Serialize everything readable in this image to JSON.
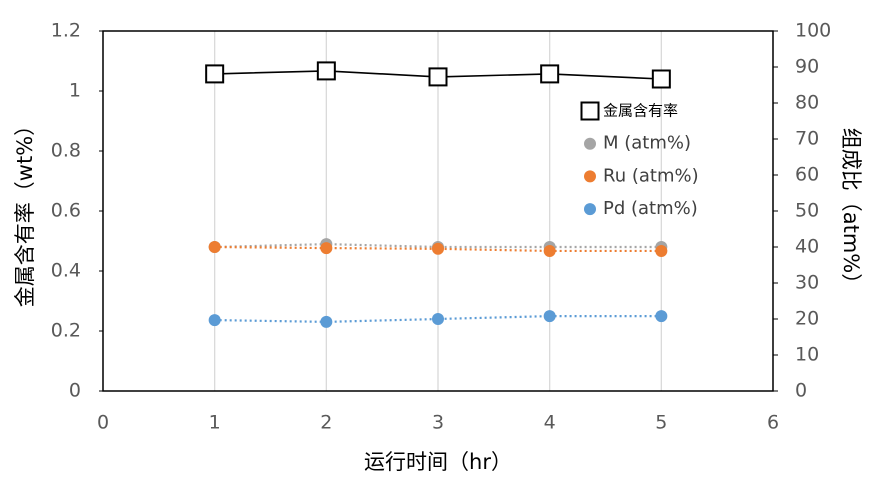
{
  "chart_data": {
    "type": "line",
    "x_label": "运行时间（hr）",
    "y_label": "金属含有率（wt%）",
    "y2_label": "组成比（atm%）",
    "x": [
      1,
      2,
      3,
      4,
      5
    ],
    "xlim": [
      0,
      6
    ],
    "xticks": [
      0,
      1,
      2,
      3,
      4,
      5,
      6
    ],
    "ylim": [
      0,
      1.2
    ],
    "yticks": [
      0,
      0.2,
      0.4,
      0.6,
      0.8,
      1,
      1.2
    ],
    "y2lim": [
      0,
      100
    ],
    "y2ticks": [
      0,
      10,
      20,
      30,
      40,
      50,
      60,
      70,
      80,
      90,
      100
    ],
    "grid": "x",
    "legend": "upper right",
    "series": [
      {
        "name": "金属含有率",
        "color": "#000000",
        "marker": "square",
        "line": "solid",
        "values": [
          1.057,
          1.067,
          1.047,
          1.057,
          1.04
        ]
      },
      {
        "name": "M (atm%)",
        "color": "#a5a5a5",
        "marker": "circle",
        "line": "dotted",
        "axis": "y2",
        "values": [
          40,
          40.8,
          40,
          40,
          40
        ]
      },
      {
        "name": "Ru (atm%)",
        "color": "#ed7d31",
        "marker": "circle",
        "line": "dotted",
        "axis": "y2",
        "values": [
          40,
          39.7,
          39.5,
          38.9,
          38.9
        ]
      },
      {
        "name": "Pd (atm%)",
        "color": "#5b9bd5",
        "marker": "circle",
        "line": "dotted",
        "axis": "y2",
        "values": [
          19.7,
          19.2,
          20,
          20.8,
          20.8
        ]
      }
    ]
  }
}
